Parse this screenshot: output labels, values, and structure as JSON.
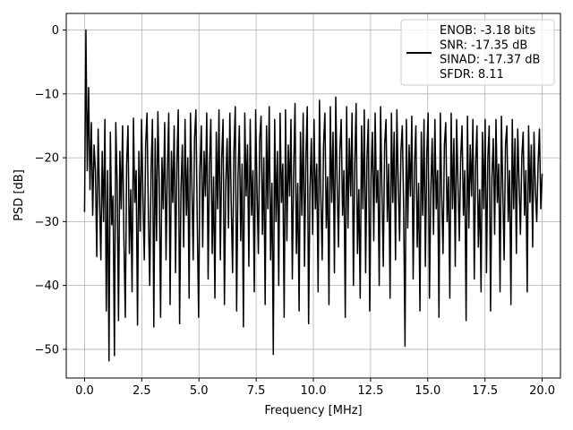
{
  "chart_data": {
    "type": "line",
    "xlabel": "Frequency [MHz]",
    "ylabel": "PSD [dB]",
    "xlim": [
      -0.8,
      20.8
    ],
    "ylim": [
      -54.5,
      2.6
    ],
    "x_ticks": [
      0.0,
      2.5,
      5.0,
      7.5,
      10.0,
      12.5,
      15.0,
      17.5,
      20.0
    ],
    "x_tick_labels": [
      "0.0",
      "2.5",
      "5.0",
      "7.5",
      "10.0",
      "12.5",
      "15.0",
      "17.5",
      "20.0"
    ],
    "y_ticks": [
      0,
      -10,
      -20,
      -30,
      -40,
      -50
    ],
    "y_tick_labels": [
      "0",
      "−10",
      "−20",
      "−30",
      "−40",
      "−50"
    ],
    "grid": true,
    "legend_position": "upper-right",
    "series": [
      {
        "name": "ENOB: -3.18 bits\nSNR: -17.35 dB\nSINAD: -17.37 dB\nSFDR: 8.11",
        "color": "#000000",
        "x_start": 0.0,
        "x_end": 20.0,
        "values": [
          -28.5,
          0.0,
          -22.0,
          -9.0,
          -25.0,
          -14.5,
          -29.0,
          -18.0,
          -22.0,
          -35.5,
          -15.5,
          -26.0,
          -36.0,
          -19.0,
          -30.0,
          -14.0,
          -44.0,
          -22.0,
          -51.8,
          -16.0,
          -30.5,
          -26.0,
          -51.0,
          -14.5,
          -24.0,
          -45.5,
          -19.0,
          -28.0,
          -15.0,
          -33.0,
          -45.0,
          -21.0,
          -15.0,
          -35.0,
          -25.0,
          -41.0,
          -13.8,
          -27.0,
          -22.0,
          -46.2,
          -19.0,
          -31.5,
          -14.0,
          -26.0,
          -36.0,
          -18.0,
          -13.0,
          -29.0,
          -40.0,
          -22.0,
          -14.0,
          -46.5,
          -17.0,
          -33.0,
          -12.8,
          -24.0,
          -45.0,
          -20.0,
          -28.0,
          -14.5,
          -36.0,
          -22.0,
          -13.0,
          -43.0,
          -19.0,
          -27.0,
          -15.0,
          -38.0,
          -21.0,
          -12.5,
          -46.0,
          -25.0,
          -18.0,
          -34.0,
          -14.0,
          -29.0,
          -20.0,
          -42.0,
          -13.0,
          -24.0,
          -36.0,
          -17.0,
          -12.5,
          -30.0,
          -45.0,
          -22.0,
          -15.0,
          -34.0,
          -19.0,
          -26.0,
          -13.0,
          -39.0,
          -21.0,
          -14.0,
          -35.0,
          -23.0,
          -42.0,
          -16.0,
          -28.0,
          -12.5,
          -36.0,
          -20.0,
          -14.0,
          -43.0,
          -24.0,
          -17.0,
          -31.0,
          -13.0,
          -27.0,
          -38.0,
          -19.0,
          -12.0,
          -44.0,
          -23.0,
          -15.0,
          -33.0,
          -21.0,
          -46.5,
          -13.0,
          -26.0,
          -18.0,
          -37.0,
          -14.0,
          -29.0,
          -22.0,
          -41.0,
          -12.5,
          -25.0,
          -35.0,
          -17.0,
          -13.5,
          -32.0,
          -20.0,
          -43.0,
          -15.0,
          -28.0,
          -12.0,
          -36.0,
          -24.0,
          -50.8,
          -14.0,
          -30.0,
          -19.0,
          -40.0,
          -13.0,
          -27.0,
          -21.0,
          -45.0,
          -12.5,
          -33.0,
          -18.0,
          -26.0,
          -14.0,
          -39.0,
          -22.0,
          -11.5,
          -35.0,
          -24.0,
          -44.0,
          -16.0,
          -29.0,
          -13.0,
          -37.0,
          -20.0,
          -12.0,
          -46.0,
          -25.0,
          -17.0,
          -32.0,
          -14.0,
          -28.0,
          -21.0,
          -41.0,
          -11.0,
          -26.0,
          -36.0,
          -18.0,
          -13.0,
          -31.0,
          -23.0,
          -43.0,
          -12.0,
          -27.0,
          -16.0,
          -38.0,
          -10.5,
          -24.0,
          -34.0,
          -19.0,
          -14.0,
          -29.0,
          -22.0,
          -45.0,
          -12.0,
          -31.0,
          -17.0,
          -26.0,
          -13.0,
          -40.0,
          -21.0,
          -11.5,
          -35.0,
          -25.0,
          -42.0,
          -15.0,
          -28.0,
          -12.5,
          -38.0,
          -20.0,
          -14.0,
          -44.0,
          -23.0,
          -16.0,
          -33.0,
          -13.0,
          -27.0,
          -22.0,
          -40.0,
          -12.0,
          -25.0,
          -37.0,
          -18.0,
          -14.0,
          -30.0,
          -21.0,
          -42.0,
          -13.0,
          -27.0,
          -16.0,
          -36.0,
          -12.5,
          -24.0,
          -33.0,
          -19.0,
          -15.0,
          -28.0,
          -49.5,
          -14.0,
          -31.0,
          -18.0,
          -26.0,
          -13.5,
          -39.0,
          -21.0,
          -15.0,
          -34.0,
          -24.0,
          -44.0,
          -16.0,
          -29.0,
          -14.0,
          -37.0,
          -20.0,
          -13.0,
          -42.0,
          -25.0,
          -17.0,
          -32.0,
          -14.0,
          -28.0,
          -22.0,
          -45.0,
          -13.0,
          -26.0,
          -35.0,
          -18.0,
          -14.5,
          -30.0,
          -23.0,
          -42.0,
          -13.0,
          -28.0,
          -17.0,
          -37.0,
          -14.0,
          -24.0,
          -33.0,
          -20.0,
          -15.0,
          -29.0,
          -22.0,
          -45.5,
          -13.5,
          -31.0,
          -18.0,
          -26.0,
          -14.0,
          -39.0,
          -21.0,
          -15.0,
          -34.0,
          -25.0,
          -41.0,
          -16.0,
          -28.0,
          -14.0,
          -38.0,
          -20.0,
          -15.0,
          -44.0,
          -23.0,
          -17.0,
          -32.0,
          -14.0,
          -27.0,
          -21.0,
          -41.0,
          -13.5,
          -25.0,
          -36.0,
          -18.0,
          -15.0,
          -30.0,
          -22.0,
          -43.0,
          -14.0,
          -28.0,
          -17.0,
          -35.0,
          -15.5,
          -24.0,
          -32.0,
          -20.0,
          -16.0,
          -29.0,
          -22.0,
          -41.0,
          -15.0,
          -27.0,
          -18.0,
          -34.0,
          -16.0,
          -25.0,
          -30.0,
          -21.0,
          -15.5,
          -28.0,
          -22.5
        ]
      }
    ]
  }
}
